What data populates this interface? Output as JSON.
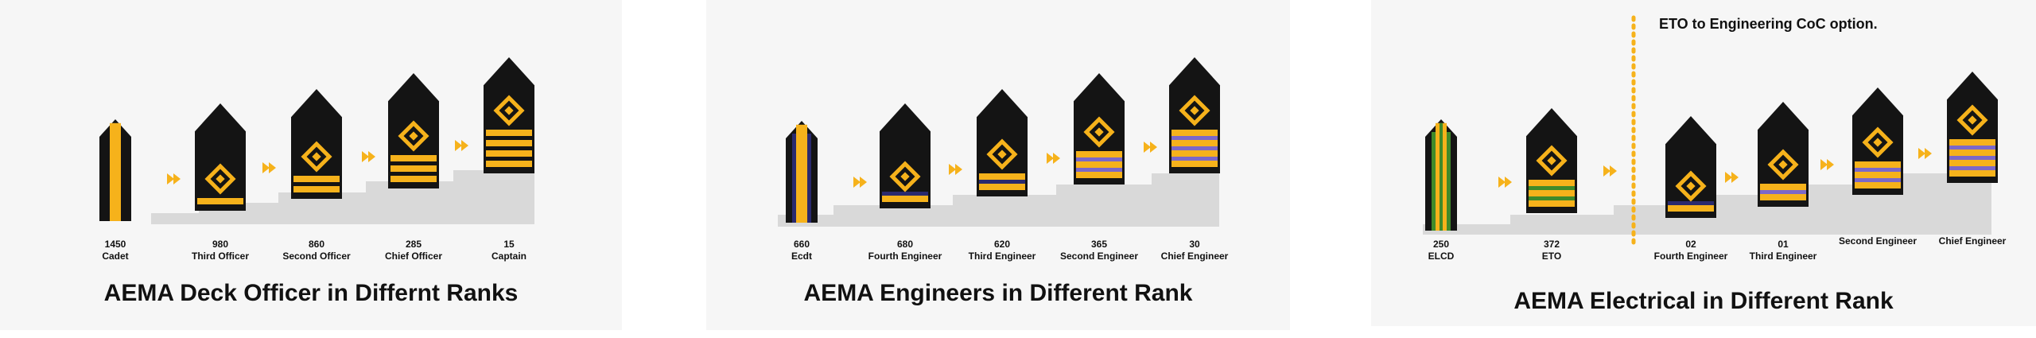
{
  "colors": {
    "gold": "#f6b21b",
    "board": "#141414",
    "navy": "#2a2a6e",
    "purple": "#7b68c8",
    "green": "#3f8a2a",
    "stair": "#d9d9d9",
    "panel_bg": "#f6f6f6",
    "dots": "#f6b21b"
  },
  "panels": [
    {
      "title": "AEMA  Deck Officer in Differnt Ranks",
      "ranks": [
        {
          "count": "1450",
          "rank": "Cadet",
          "stripes": 0,
          "insignia": "cadet-vertical",
          "stripe_color": "gold"
        },
        {
          "count": "980",
          "rank": "Third Officer",
          "stripes": 1,
          "insignia": "diamond",
          "stripe_color": "gold"
        },
        {
          "count": "860",
          "rank": "Second Officer",
          "stripes": 2,
          "insignia": "diamond",
          "stripe_color": "gold"
        },
        {
          "count": "285",
          "rank": "Chief Officer",
          "stripes": 3,
          "insignia": "diamond",
          "stripe_color": "gold"
        },
        {
          "count": "15",
          "rank": "Captain",
          "stripes": 4,
          "insignia": "diamond",
          "stripe_color": "gold"
        }
      ]
    },
    {
      "title": "AEMA Engineers in Different Rank",
      "ranks": [
        {
          "count": "660",
          "rank": "Ecdt",
          "stripes": 0,
          "insignia": "cadet-vertical-navy",
          "stripe_color": "navy"
        },
        {
          "count": "680",
          "rank": "Fourth Engineer",
          "stripes": 1,
          "insignia": "diamond",
          "stripe_color": "navy"
        },
        {
          "count": "620",
          "rank": "Third Engineer",
          "stripes": 2,
          "insignia": "diamond",
          "stripe_color": "navy"
        },
        {
          "count": "365",
          "rank": "Second Engineer",
          "stripes": 3,
          "insignia": "diamond",
          "stripe_color": "purple"
        },
        {
          "count": "30",
          "rank": "Chief Engineer",
          "stripes": 4,
          "insignia": "diamond",
          "stripe_color": "purple"
        }
      ]
    },
    {
      "title": "AEMA Electrical in Different Rank",
      "note": "ETO to Engineering CoC option.",
      "ranks": [
        {
          "count": "250",
          "rank": "ELCD",
          "stripes": 0,
          "insignia": "cadet-vertical-green",
          "stripe_color": "green"
        },
        {
          "count": "372",
          "rank": "ETO",
          "stripes": 3,
          "insignia": "diamond",
          "stripe_color": "green"
        },
        {
          "count": "02",
          "rank": "Fourth Engineer",
          "stripes": 1,
          "insignia": "diamond",
          "stripe_color": "navy"
        },
        {
          "count": "01",
          "rank": "Third Engineer",
          "stripes": 2,
          "insignia": "diamond",
          "stripe_color": "purple"
        },
        {
          "count": "",
          "rank": "Second Engineer",
          "stripes": 3,
          "insignia": "diamond",
          "stripe_color": "purple"
        },
        {
          "count": "",
          "rank": "Chief Engineer",
          "stripes": 4,
          "insignia": "diamond",
          "stripe_color": "purple"
        }
      ]
    }
  ]
}
